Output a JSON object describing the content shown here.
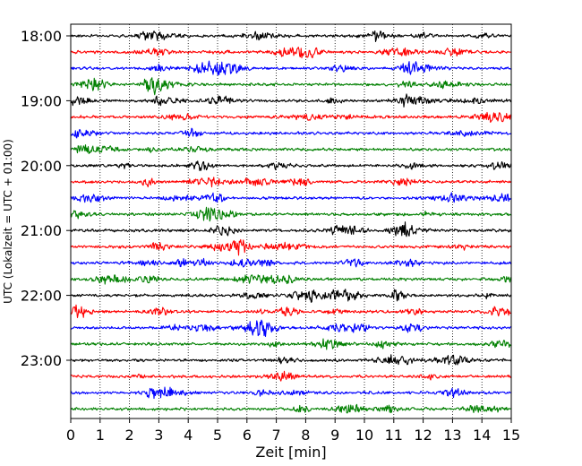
{
  "chart_data": {
    "type": "line",
    "title": "",
    "xlabel": "Zeit  [min]",
    "ylabel": "UTC (Lokalzeit = UTC + 01:00)",
    "xlim": [
      0,
      15
    ],
    "x_ticks": [
      0,
      1,
      2,
      3,
      4,
      5,
      6,
      7,
      8,
      9,
      10,
      11,
      12,
      13,
      14,
      15
    ],
    "x_tick_labels": [
      "0",
      "1",
      "2",
      "3",
      "4",
      "5",
      "6",
      "7",
      "8",
      "9",
      "10",
      "11",
      "12",
      "13",
      "14",
      "15"
    ],
    "y_tick_labels": [
      "18:00",
      "19:00",
      "20:00",
      "21:00",
      "22:00",
      "23:00"
    ],
    "vertical_grid": true,
    "grid_style": "dotted",
    "trace_interval_minutes": 15,
    "traces_per_hour": 4,
    "color_cycle": [
      "#000000",
      "#ff0000",
      "#0000ff",
      "#008000"
    ],
    "traces": [
      {
        "start": "18:00"
      },
      {
        "start": "18:15"
      },
      {
        "start": "18:30"
      },
      {
        "start": "18:45"
      },
      {
        "start": "19:00"
      },
      {
        "start": "19:15"
      },
      {
        "start": "19:30"
      },
      {
        "start": "19:45"
      },
      {
        "start": "20:00"
      },
      {
        "start": "20:15"
      },
      {
        "start": "20:30"
      },
      {
        "start": "20:45"
      },
      {
        "start": "21:00"
      },
      {
        "start": "21:15"
      },
      {
        "start": "21:30"
      },
      {
        "start": "21:45"
      },
      {
        "start": "22:00"
      },
      {
        "start": "22:15"
      },
      {
        "start": "22:30"
      },
      {
        "start": "22:45"
      },
      {
        "start": "23:00"
      },
      {
        "start": "23:15"
      },
      {
        "start": "23:30"
      },
      {
        "start": "23:45"
      }
    ]
  }
}
